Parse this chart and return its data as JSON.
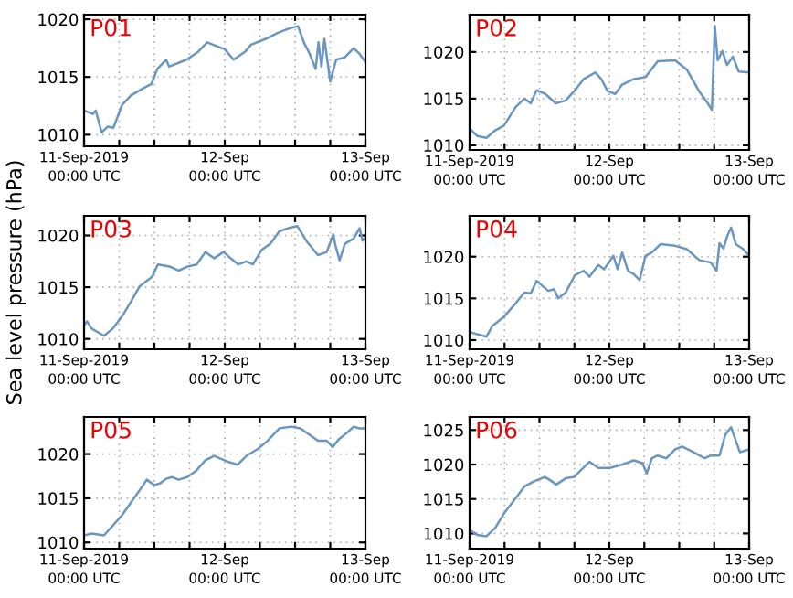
{
  "chart_data": [
    {
      "type": "line",
      "title": "P01",
      "x": [
        "2019-09-11T00:00",
        "2019-09-11T01:30",
        "2019-09-11T02:00",
        "2019-09-11T03:00",
        "2019-09-11T04:00",
        "2019-09-11T05:00",
        "2019-09-11T06:30",
        "2019-09-11T08:00",
        "2019-09-11T10:00",
        "2019-09-11T11:30",
        "2019-09-11T12:30",
        "2019-09-11T14:00",
        "2019-09-11T14:30",
        "2019-09-11T17:30",
        "2019-09-11T19:30",
        "2019-09-11T21:00",
        "2019-09-11T22:30",
        "2019-09-12T00:00",
        "2019-09-12T01:30",
        "2019-09-12T03:30",
        "2019-09-12T04:30",
        "2019-09-12T07:00",
        "2019-09-12T09:00",
        "2019-09-12T11:00",
        "2019-09-12T12:30",
        "2019-09-12T13:30",
        "2019-09-12T14:30",
        "2019-09-12T15:30",
        "2019-09-12T16:00",
        "2019-09-12T16:30",
        "2019-09-12T17:00",
        "2019-09-12T18:00",
        "2019-09-12T19:00",
        "2019-09-12T20:30",
        "2019-09-12T22:00",
        "2019-09-12T23:00",
        "2019-09-13T00:00"
      ],
      "series": [
        {
          "color": "#6a96c0",
          "values": [
            1012.1,
            1011.8,
            1012.1,
            1010.2,
            1010.7,
            1010.6,
            1012.6,
            1013.4,
            1014.0,
            1014.4,
            1015.7,
            1016.5,
            1015.9,
            1016.5,
            1017.2,
            1018.0,
            1017.7,
            1017.4,
            1016.5,
            1017.2,
            1017.8,
            1018.3,
            1018.8,
            1019.2,
            1019.4,
            1018.0,
            1017.0,
            1015.7,
            1018.0,
            1015.9,
            1018.3,
            1014.6,
            1016.5,
            1016.7,
            1017.5,
            1017.0,
            1016.3
          ]
        }
      ],
      "xlim": [
        "2019-09-11T00:00",
        "2019-09-13T00:00"
      ],
      "xticks": [
        {
          "value": "2019-09-11T00:00",
          "label": "11-Sep-2019\n00:00 UTC"
        },
        {
          "value": "2019-09-11T06:00",
          "label": null
        },
        {
          "value": "2019-09-11T12:00",
          "label": null
        },
        {
          "value": "2019-09-11T18:00",
          "label": null
        },
        {
          "value": "2019-09-12T00:00",
          "label": "12-Sep\n00:00 UTC"
        },
        {
          "value": "2019-09-12T06:00",
          "label": null
        },
        {
          "value": "2019-09-12T12:00",
          "label": null
        },
        {
          "value": "2019-09-12T18:00",
          "label": null
        },
        {
          "value": "2019-09-13T00:00",
          "label": "13-Sep\n00:00 UTC"
        }
      ],
      "ylim": [
        1009,
        1020.4
      ],
      "yticks": [
        1010,
        1015,
        1020
      ],
      "grid": true
    },
    {
      "type": "line",
      "title": "P02",
      "x": [
        "2019-09-11T00:00",
        "2019-09-11T01:18",
        "2019-09-11T02:54",
        "2019-09-11T04:24",
        "2019-09-11T05:54",
        "2019-09-11T07:54",
        "2019-09-11T09:24",
        "2019-09-11T10:30",
        "2019-09-11T11:30",
        "2019-09-11T13:00",
        "2019-09-11T14:48",
        "2019-09-11T16:30",
        "2019-09-11T18:06",
        "2019-09-11T19:36",
        "2019-09-11T21:36",
        "2019-09-11T22:36",
        "2019-09-11T23:42",
        "2019-09-12T01:00",
        "2019-09-12T02:12",
        "2019-09-12T04:12",
        "2019-09-12T06:12",
        "2019-09-12T08:18",
        "2019-09-12T11:18",
        "2019-09-12T13:18",
        "2019-09-12T15:24",
        "2019-09-12T16:54",
        "2019-09-12T17:36",
        "2019-09-12T18:06",
        "2019-09-12T18:36",
        "2019-09-12T19:24",
        "2019-09-12T20:12",
        "2019-09-12T21:12",
        "2019-09-12T22:12",
        "2019-09-13T00:00"
      ],
      "series": [
        {
          "color": "#6a96c0",
          "values": [
            1011.8,
            1011.0,
            1010.8,
            1011.6,
            1012.1,
            1014.1,
            1015.0,
            1014.5,
            1015.9,
            1015.5,
            1014.5,
            1014.8,
            1015.9,
            1017.1,
            1017.8,
            1017.1,
            1015.8,
            1015.5,
            1016.5,
            1017.1,
            1017.3,
            1019.0,
            1019.1,
            1018.1,
            1015.8,
            1014.5,
            1013.8,
            1022.8,
            1019.1,
            1020.1,
            1018.6,
            1019.5,
            1017.9,
            1017.8
          ]
        }
      ],
      "xlim": [
        "2019-09-11T00:00",
        "2019-09-13T00:00"
      ],
      "xticks": [
        {
          "value": "2019-09-11T00:00",
          "label": "11-Sep-2019\n00:00 UTC"
        },
        {
          "value": "2019-09-11T06:00",
          "label": null
        },
        {
          "value": "2019-09-11T12:00",
          "label": null
        },
        {
          "value": "2019-09-11T18:00",
          "label": null
        },
        {
          "value": "2019-09-12T00:00",
          "label": "12-Sep\n00:00 UTC"
        },
        {
          "value": "2019-09-12T06:00",
          "label": null
        },
        {
          "value": "2019-09-12T12:00",
          "label": null
        },
        {
          "value": "2019-09-12T18:00",
          "label": null
        },
        {
          "value": "2019-09-13T00:00",
          "label": "13-Sep\n00:00 UTC"
        }
      ],
      "ylim": [
        1009.5,
        1024
      ],
      "yticks": [
        1010,
        1015,
        1020
      ],
      "grid": true
    },
    {
      "type": "line",
      "title": "P03",
      "ylabel": "Sea level pressure (hPa)",
      "x": [
        "2019-09-11T00:00",
        "2019-09-11T00:30",
        "2019-09-11T01:18",
        "2019-09-11T03:24",
        "2019-09-11T04:54",
        "2019-09-11T06:30",
        "2019-09-11T08:00",
        "2019-09-11T09:30",
        "2019-09-11T11:36",
        "2019-09-11T12:36",
        "2019-09-11T14:36",
        "2019-09-11T16:06",
        "2019-09-11T17:42",
        "2019-09-11T19:12",
        "2019-09-11T20:42",
        "2019-09-11T22:12",
        "2019-09-11T23:48",
        "2019-09-12T01:00",
        "2019-09-12T02:18",
        "2019-09-12T03:42",
        "2019-09-12T04:48",
        "2019-09-12T06:18",
        "2019-09-12T07:48",
        "2019-09-12T09:18",
        "2019-09-12T10:48",
        "2019-09-12T12:24",
        "2019-09-12T13:54",
        "2019-09-12T15:54",
        "2019-09-12T17:24",
        "2019-09-12T18:30",
        "2019-09-12T18:54",
        "2019-09-12T19:36",
        "2019-09-12T20:30",
        "2019-09-12T22:00",
        "2019-09-12T23:00",
        "2019-09-12T23:30",
        "2019-09-13T00:00"
      ],
      "series": [
        {
          "color": "#6a96c0",
          "values": [
            1011.3,
            1011.7,
            1011.0,
            1010.3,
            1011.0,
            1012.2,
            1013.6,
            1015.1,
            1016.0,
            1017.2,
            1017.0,
            1016.6,
            1017.0,
            1017.2,
            1018.4,
            1017.8,
            1018.4,
            1017.8,
            1017.2,
            1017.5,
            1017.2,
            1018.6,
            1019.2,
            1020.4,
            1020.7,
            1020.9,
            1019.5,
            1018.1,
            1018.4,
            1020.1,
            1019.0,
            1017.6,
            1019.2,
            1019.7,
            1020.7,
            1019.5,
            1019.8
          ]
        }
      ],
      "xlim": [
        "2019-09-11T00:00",
        "2019-09-13T00:00"
      ],
      "xticks": [
        {
          "value": "2019-09-11T00:00",
          "label": "11-Sep-2019\n00:00 UTC"
        },
        {
          "value": "2019-09-11T06:00",
          "label": null
        },
        {
          "value": "2019-09-11T12:00",
          "label": null
        },
        {
          "value": "2019-09-11T18:00",
          "label": null
        },
        {
          "value": "2019-09-12T00:00",
          "label": "12-Sep\n00:00 UTC"
        },
        {
          "value": "2019-09-12T06:00",
          "label": null
        },
        {
          "value": "2019-09-12T12:00",
          "label": null
        },
        {
          "value": "2019-09-12T18:00",
          "label": null
        },
        {
          "value": "2019-09-13T00:00",
          "label": "13-Sep\n00:00 UTC"
        }
      ],
      "ylim": [
        1009,
        1021.9
      ],
      "yticks": [
        1010,
        1015,
        1020
      ],
      "grid": true
    },
    {
      "type": "line",
      "title": "P04",
      "x": [
        "2019-09-11T00:00",
        "2019-09-11T01:18",
        "2019-09-11T02:54",
        "2019-09-11T03:54",
        "2019-09-11T05:54",
        "2019-09-11T07:54",
        "2019-09-11T09:24",
        "2019-09-11T10:30",
        "2019-09-11T11:30",
        "2019-09-11T12:30",
        "2019-09-11T13:30",
        "2019-09-11T14:30",
        "2019-09-11T15:12",
        "2019-09-11T16:30",
        "2019-09-11T18:06",
        "2019-09-11T19:36",
        "2019-09-11T20:36",
        "2019-09-11T22:06",
        "2019-09-11T23:06",
        "2019-09-12T00:42",
        "2019-09-12T01:24",
        "2019-09-12T02:12",
        "2019-09-12T03:12",
        "2019-09-12T04:12",
        "2019-09-12T05:12",
        "2019-09-12T06:12",
        "2019-09-12T07:18",
        "2019-09-12T08:48",
        "2019-09-12T11:18",
        "2019-09-12T13:18",
        "2019-09-12T15:24",
        "2019-09-12T17:24",
        "2019-09-12T18:24",
        "2019-09-12T18:54",
        "2019-09-12T19:36",
        "2019-09-12T20:12",
        "2019-09-12T20:54",
        "2019-09-12T21:42",
        "2019-09-12T23:00",
        "2019-09-13T00:00"
      ],
      "series": [
        {
          "color": "#6a96c0",
          "values": [
            1011.0,
            1010.7,
            1010.4,
            1011.7,
            1012.8,
            1014.4,
            1015.7,
            1015.6,
            1017.1,
            1016.5,
            1015.9,
            1016.1,
            1015.0,
            1015.7,
            1017.8,
            1018.3,
            1017.6,
            1019.0,
            1018.5,
            1020.1,
            1018.5,
            1020.5,
            1018.3,
            1017.9,
            1017.2,
            1020.1,
            1020.5,
            1021.5,
            1021.3,
            1020.9,
            1019.6,
            1019.3,
            1018.3,
            1021.6,
            1021.0,
            1022.4,
            1023.5,
            1021.5,
            1020.9,
            1020.1
          ]
        }
      ],
      "xlim": [
        "2019-09-11T00:00",
        "2019-09-13T00:00"
      ],
      "xticks": [
        {
          "value": "2019-09-11T00:00",
          "label": "11-Sep-2019\n00:00 UTC"
        },
        {
          "value": "2019-09-11T06:00",
          "label": null
        },
        {
          "value": "2019-09-11T12:00",
          "label": null
        },
        {
          "value": "2019-09-11T18:00",
          "label": null
        },
        {
          "value": "2019-09-12T00:00",
          "label": "12-Sep\n00:00 UTC"
        },
        {
          "value": "2019-09-12T06:00",
          "label": null
        },
        {
          "value": "2019-09-12T12:00",
          "label": null
        },
        {
          "value": "2019-09-12T18:00",
          "label": null
        },
        {
          "value": "2019-09-13T00:00",
          "label": "13-Sep\n00:00 UTC"
        }
      ],
      "ylim": [
        1008.9,
        1024.9
      ],
      "yticks": [
        1010,
        1015,
        1020
      ],
      "grid": true
    },
    {
      "type": "line",
      "title": "P05",
      "x": [
        "2019-09-11T00:00",
        "2019-09-11T01:18",
        "2019-09-11T03:24",
        "2019-09-11T04:54",
        "2019-09-11T06:30",
        "2019-09-11T08:30",
        "2019-09-11T10:00",
        "2019-09-11T10:42",
        "2019-09-11T12:00",
        "2019-09-11T13:00",
        "2019-09-11T14:00",
        "2019-09-11T15:00",
        "2019-09-11T16:06",
        "2019-09-11T17:36",
        "2019-09-11T19:06",
        "2019-09-11T20:42",
        "2019-09-11T22:12",
        "2019-09-11T23:12",
        "2019-09-12T00:42",
        "2019-09-12T02:12",
        "2019-09-12T03:42",
        "2019-09-12T05:42",
        "2019-09-12T07:18",
        "2019-09-12T09:18",
        "2019-09-12T11:18",
        "2019-09-12T12:54",
        "2019-09-12T14:24",
        "2019-09-12T15:54",
        "2019-09-12T17:24",
        "2019-09-12T18:24",
        "2019-09-12T19:30",
        "2019-09-12T21:00",
        "2019-09-12T22:00",
        "2019-09-12T23:00",
        "2019-09-13T00:00"
      ],
      "series": [
        {
          "color": "#6a96c0",
          "values": [
            1010.8,
            1011.0,
            1010.8,
            1011.9,
            1013.1,
            1015.0,
            1016.4,
            1017.1,
            1016.5,
            1016.7,
            1017.2,
            1017.4,
            1017.1,
            1017.4,
            1018.1,
            1019.3,
            1019.8,
            1019.5,
            1019.1,
            1018.8,
            1019.8,
            1020.6,
            1021.5,
            1022.9,
            1023.1,
            1022.9,
            1022.2,
            1021.5,
            1021.5,
            1020.8,
            1021.7,
            1022.5,
            1023.1,
            1022.9,
            1022.9
          ]
        }
      ],
      "xlim": [
        "2019-09-11T00:00",
        "2019-09-13T00:00"
      ],
      "xticks": [
        {
          "value": "2019-09-11T00:00",
          "label": "11-Sep-2019\n00:00 UTC"
        },
        {
          "value": "2019-09-11T06:00",
          "label": null
        },
        {
          "value": "2019-09-11T12:00",
          "label": null
        },
        {
          "value": "2019-09-11T18:00",
          "label": null
        },
        {
          "value": "2019-09-12T00:00",
          "label": "12-Sep\n00:00 UTC"
        },
        {
          "value": "2019-09-12T06:00",
          "label": null
        },
        {
          "value": "2019-09-12T12:00",
          "label": null
        },
        {
          "value": "2019-09-12T18:00",
          "label": null
        },
        {
          "value": "2019-09-13T00:00",
          "label": "13-Sep\n00:00 UTC"
        }
      ],
      "ylim": [
        1009.3,
        1024.2
      ],
      "yticks": [
        1010,
        1015,
        1020
      ],
      "grid": true
    },
    {
      "type": "line",
      "title": "P06",
      "x": [
        "2019-09-11T00:00",
        "2019-09-11T01:18",
        "2019-09-11T02:54",
        "2019-09-11T04:24",
        "2019-09-11T05:54",
        "2019-09-11T07:54",
        "2019-09-11T09:24",
        "2019-09-11T10:54",
        "2019-09-11T12:54",
        "2019-09-11T13:42",
        "2019-09-11T14:54",
        "2019-09-11T16:30",
        "2019-09-11T18:00",
        "2019-09-11T19:00",
        "2019-09-11T20:36",
        "2019-09-11T22:06",
        "2019-09-12T00:06",
        "2019-09-12T02:12",
        "2019-09-12T04:12",
        "2019-09-12T05:42",
        "2019-09-12T06:24",
        "2019-09-12T07:18",
        "2019-09-12T08:18",
        "2019-09-12T09:48",
        "2019-09-12T11:18",
        "2019-09-12T12:30",
        "2019-09-12T14:24",
        "2019-09-12T16:24",
        "2019-09-12T17:24",
        "2019-09-12T18:54",
        "2019-09-12T19:54",
        "2019-09-12T20:54",
        "2019-09-12T21:54",
        "2019-09-12T22:24",
        "2019-09-13T00:00"
      ],
      "series": [
        {
          "color": "#6a96c0",
          "values": [
            1010.5,
            1009.8,
            1009.6,
            1010.8,
            1012.9,
            1015.1,
            1016.8,
            1017.5,
            1018.2,
            1017.8,
            1017.1,
            1018.0,
            1018.2,
            1019.1,
            1020.4,
            1019.5,
            1019.5,
            1020.0,
            1020.6,
            1020.2,
            1018.7,
            1020.9,
            1021.3,
            1020.9,
            1022.2,
            1022.6,
            1021.8,
            1020.9,
            1021.3,
            1021.3,
            1024.3,
            1025.4,
            1023.0,
            1021.8,
            1022.2
          ]
        }
      ],
      "xlim": [
        "2019-09-11T00:00",
        "2019-09-13T00:00"
      ],
      "xticks": [
        {
          "value": "2019-09-11T00:00",
          "label": "11-Sep-2019\n00:00 UTC"
        },
        {
          "value": "2019-09-11T06:00",
          "label": null
        },
        {
          "value": "2019-09-11T12:00",
          "label": null
        },
        {
          "value": "2019-09-11T18:00",
          "label": null
        },
        {
          "value": "2019-09-12T00:00",
          "label": "12-Sep\n00:00 UTC"
        },
        {
          "value": "2019-09-12T06:00",
          "label": null
        },
        {
          "value": "2019-09-12T12:00",
          "label": null
        },
        {
          "value": "2019-09-12T18:00",
          "label": null
        },
        {
          "value": "2019-09-13T00:00",
          "label": "13-Sep\n00:00 UTC"
        }
      ],
      "ylim": [
        1007.8,
        1026.9
      ],
      "yticks": [
        1010,
        1015,
        1020,
        1025
      ],
      "grid": true
    }
  ]
}
